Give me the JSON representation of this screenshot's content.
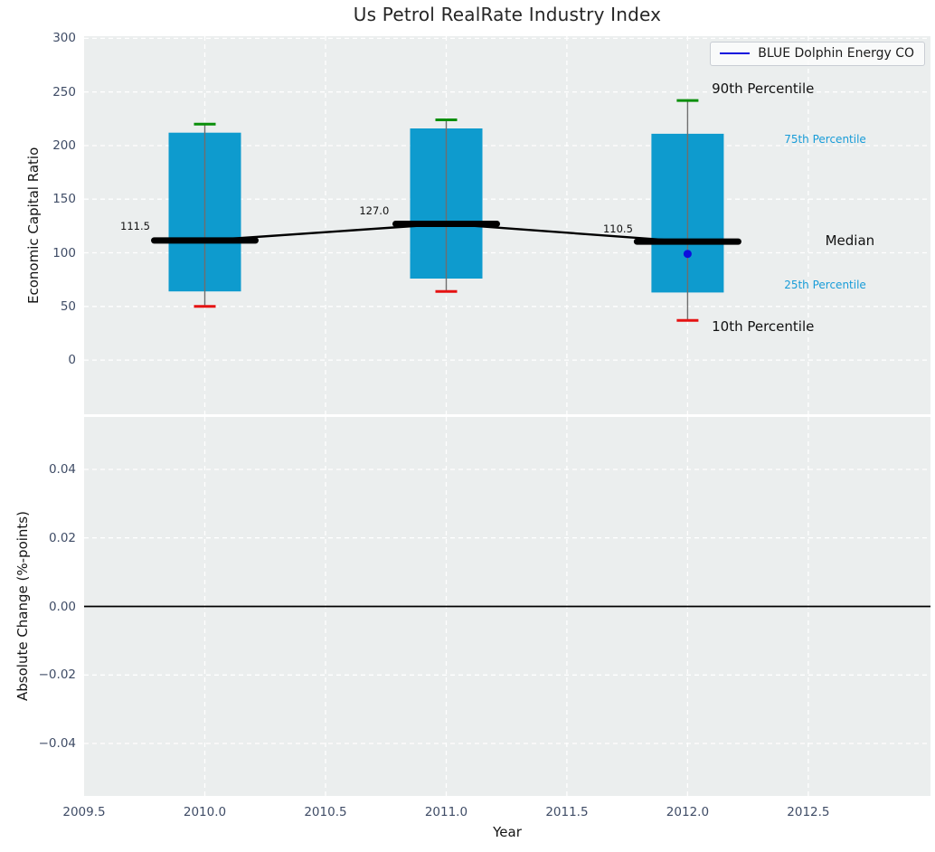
{
  "chart_data": {
    "type": "boxplot-line-combo",
    "title": "Us Petrol RealRate Industry Index",
    "xlabel": "Year",
    "xlim": [
      2009.5,
      2013.006
    ],
    "x_ticks": [
      {
        "v": 2009.5,
        "label": "2009.5"
      },
      {
        "v": 2010.0,
        "label": "2010.0"
      },
      {
        "v": 2010.5,
        "label": "2010.5"
      },
      {
        "v": 2011.0,
        "label": "2011.0"
      },
      {
        "v": 2011.5,
        "label": "2011.5"
      },
      {
        "v": 2012.0,
        "label": "2012.0"
      },
      {
        "v": 2012.5,
        "label": "2012.5"
      }
    ],
    "grid": "white dashed, on",
    "legend": {
      "label": "BLUE Dolphin Energy CO",
      "color": "#0d0ddd",
      "position": "upper-right"
    },
    "top_panel": {
      "ylabel": "Economic Capital Ratio",
      "ylim": [
        -50.5,
        302
      ],
      "y_ticks": [
        {
          "v": 300,
          "label": "300"
        },
        {
          "v": 250,
          "label": "250"
        },
        {
          "v": 200,
          "label": "200"
        },
        {
          "v": 150,
          "label": "150"
        },
        {
          "v": 100,
          "label": "100"
        },
        {
          "v": 50,
          "label": "50"
        },
        {
          "v": 0,
          "label": "0"
        }
      ],
      "boxes": [
        {
          "year": 2010,
          "p10": 50,
          "p25": 64,
          "median": 111.5,
          "p75": 212,
          "p90": 220
        },
        {
          "year": 2011,
          "p10": 64,
          "p25": 76,
          "median": 127.0,
          "p75": 216,
          "p90": 224
        },
        {
          "year": 2012,
          "p10": 37,
          "p25": 63,
          "median": 110.5,
          "p75": 211,
          "p90": 242
        }
      ],
      "median_line": [
        {
          "x": 2010,
          "y": 111.5
        },
        {
          "x": 2011,
          "y": 127.0
        },
        {
          "x": 2012,
          "y": 110.5
        }
      ],
      "company_point": {
        "x": 2012,
        "y": 99
      },
      "annotations": [
        {
          "text": "111.5",
          "x": 2009.65,
          "y": 124.5,
          "style": "value"
        },
        {
          "text": "127.0",
          "x": 2010.64,
          "y": 139.5,
          "style": "value"
        },
        {
          "text": "110.5",
          "x": 2011.65,
          "y": 122,
          "style": "value"
        },
        {
          "text": "90th Percentile",
          "x": 2012.1,
          "y": 253,
          "style": "black"
        },
        {
          "text": "75th Percentile",
          "x": 2012.4,
          "y": 206,
          "style": "blue"
        },
        {
          "text": "Median",
          "x": 2012.57,
          "y": 111,
          "style": "black"
        },
        {
          "text": "25th Percentile",
          "x": 2012.4,
          "y": 70,
          "style": "blue"
        },
        {
          "text": "10th Percentile",
          "x": 2012.1,
          "y": 31,
          "style": "black"
        }
      ]
    },
    "bottom_panel": {
      "ylabel": "Absolute Change (%-points)",
      "ylim": [
        -0.0553,
        0.0553
      ],
      "y_ticks": [
        {
          "v": 0.04,
          "label": "0.04"
        },
        {
          "v": 0.02,
          "label": "0.02"
        },
        {
          "v": 0.0,
          "label": "0.00"
        },
        {
          "v": -0.02,
          "label": "−0.02"
        },
        {
          "v": -0.04,
          "label": "−0.04"
        }
      ],
      "zero_line": 0.0
    },
    "colors": {
      "axes_bg": "#ebeeee",
      "grid": "#ffffff",
      "box_fill": "#0e9bce",
      "whisker": "#6e6e6e",
      "cap_high": "#0a8f0a",
      "cap_low": "#e51212",
      "median": "#000000",
      "company": "#0d0ddd",
      "tick_label": "#3f4c66",
      "percentile_label_blue": "#189cd8"
    }
  }
}
